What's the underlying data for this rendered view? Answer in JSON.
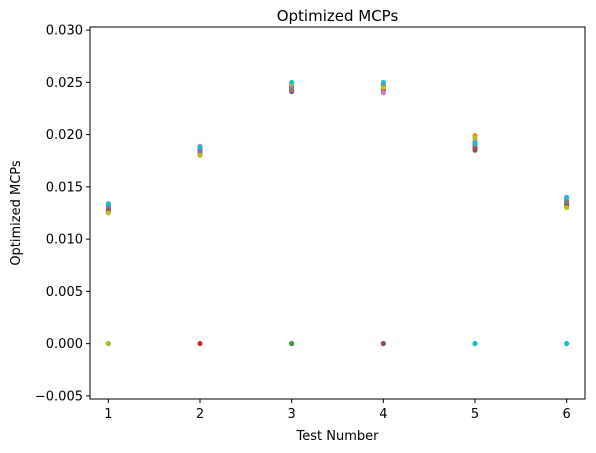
{
  "chart_data": {
    "type": "scatter",
    "title": "Optimized MCPs",
    "xlabel": "Test Number",
    "ylabel": "Optimized MCPs",
    "xlim": [
      0.8,
      6.2
    ],
    "ylim": [
      -0.0053,
      0.0303
    ],
    "xticks": [
      1,
      2,
      3,
      4,
      5,
      6
    ],
    "xtick_labels": [
      "1",
      "2",
      "3",
      "4",
      "5",
      "6"
    ],
    "yticks": [
      -0.005,
      0.0,
      0.005,
      0.01,
      0.015,
      0.02,
      0.025,
      0.03
    ],
    "ytick_labels": [
      "−0.005",
      "0.000",
      "0.005",
      "0.010",
      "0.015",
      "0.020",
      "0.025",
      "0.030"
    ],
    "grid": false,
    "legend": "none",
    "series": [
      {
        "color": "#1f77b4",
        "x": [
          1,
          2,
          3,
          4,
          5,
          6,
          1,
          2,
          3,
          4,
          5,
          6
        ],
        "y": [
          0.0126,
          0.0183,
          0.0242,
          0.0243,
          0.0186,
          0.0135,
          0.0,
          0.0,
          0.0,
          0.0,
          0.0,
          0.0
        ]
      },
      {
        "color": "#ff7f0e",
        "x": [
          1,
          2,
          3,
          4,
          5,
          6
        ],
        "y": [
          0.0129,
          0.0186,
          0.0247,
          0.0249,
          0.0199,
          0.0132
        ]
      },
      {
        "color": "#2ca02c",
        "x": [
          1,
          2,
          3,
          4,
          5,
          6,
          3
        ],
        "y": [
          0.0128,
          0.0184,
          0.0245,
          0.0246,
          0.0193,
          0.0137,
          0.0
        ]
      },
      {
        "color": "#d62728",
        "x": [
          1,
          2,
          3,
          4,
          5,
          6,
          2,
          4
        ],
        "y": [
          0.0131,
          0.0187,
          0.0246,
          0.0247,
          0.0188,
          0.0131,
          0.0,
          0.0
        ]
      },
      {
        "color": "#9467bd",
        "x": [
          1,
          2,
          3,
          4,
          5,
          6,
          4
        ],
        "y": [
          0.013,
          0.0185,
          0.0244,
          0.0242,
          0.019,
          0.0139,
          0.0
        ]
      },
      {
        "color": "#8c564b",
        "x": [
          1,
          2,
          3,
          4,
          5,
          6,
          4
        ],
        "y": [
          0.0127,
          0.0181,
          0.0241,
          0.0244,
          0.0185,
          0.0133,
          0.0
        ]
      },
      {
        "color": "#e377c2",
        "x": [
          1,
          2,
          3,
          4,
          5,
          6
        ],
        "y": [
          0.0133,
          0.0189,
          0.0248,
          0.024,
          0.0194,
          0.0138
        ]
      },
      {
        "color": "#7f7f7f",
        "x": [
          1,
          2,
          3,
          4,
          5,
          6,
          1
        ],
        "y": [
          0.0132,
          0.0182,
          0.0243,
          0.0248,
          0.0191,
          0.0136,
          0.0
        ]
      },
      {
        "color": "#bcbd22",
        "x": [
          1,
          2,
          3,
          4,
          5,
          6,
          1
        ],
        "y": [
          0.0125,
          0.018,
          0.0249,
          0.0245,
          0.0197,
          0.013,
          0.0
        ]
      },
      {
        "color": "#17becf",
        "x": [
          1,
          2,
          3,
          4,
          5,
          6,
          5,
          6
        ],
        "y": [
          0.0134,
          0.0188,
          0.025,
          0.025,
          0.0192,
          0.014,
          0.0,
          0.0
        ]
      }
    ]
  }
}
